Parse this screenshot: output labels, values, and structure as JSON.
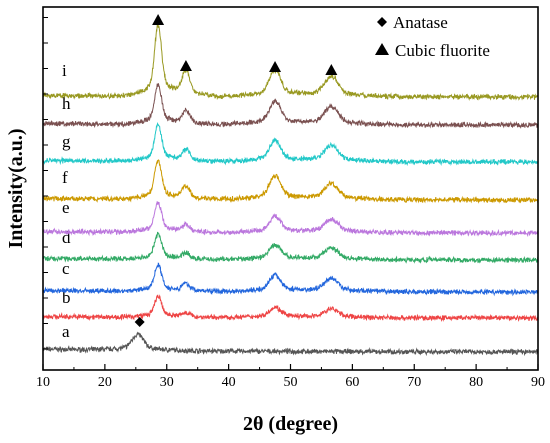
{
  "chart_data": {
    "type": "line",
    "xlabel": "2θ (degree)",
    "ylabel": "Intensity(a.u.)",
    "xlim": [
      10,
      90
    ],
    "xticks": [
      10,
      20,
      30,
      40,
      50,
      60,
      70,
      80,
      90
    ],
    "y_tick_labels_shown": false,
    "grid": false,
    "legend": {
      "placement": "top-right",
      "entries": [
        {
          "marker": "diamond",
          "label": "Anatase"
        },
        {
          "marker": "triangle",
          "label": "Cubic fluorite"
        }
      ]
    },
    "series": [
      {
        "name": "a",
        "color": "#555555",
        "peaks": [
          {
            "x": 25.3,
            "h": 0.55
          }
        ],
        "diamond_markers": [
          25.3
        ]
      },
      {
        "name": "b",
        "color": "#ee4444",
        "peaks": [
          {
            "x": 28.6,
            "h": 0.7
          },
          {
            "x": 33.1,
            "h": 0.15
          },
          {
            "x": 47.5,
            "h": 0.35
          },
          {
            "x": 56.6,
            "h": 0.3
          }
        ]
      },
      {
        "name": "c",
        "color": "#2266dd",
        "peaks": [
          {
            "x": 28.6,
            "h": 0.9
          },
          {
            "x": 33.1,
            "h": 0.25
          },
          {
            "x": 47.5,
            "h": 0.55
          },
          {
            "x": 56.6,
            "h": 0.45
          }
        ]
      },
      {
        "name": "d",
        "color": "#33aa66",
        "peaks": [
          {
            "x": 28.6,
            "h": 0.85
          },
          {
            "x": 33.1,
            "h": 0.2
          },
          {
            "x": 47.5,
            "h": 0.5
          },
          {
            "x": 56.6,
            "h": 0.4
          }
        ]
      },
      {
        "name": "e",
        "color": "#bb77dd",
        "peaks": [
          {
            "x": 28.6,
            "h": 1.0
          },
          {
            "x": 33.1,
            "h": 0.25
          },
          {
            "x": 47.5,
            "h": 0.55
          },
          {
            "x": 56.6,
            "h": 0.45
          }
        ]
      },
      {
        "name": "f",
        "color": "#cc9900",
        "peaks": [
          {
            "x": 28.6,
            "h": 1.3
          },
          {
            "x": 33.1,
            "h": 0.45
          },
          {
            "x": 47.5,
            "h": 0.8
          },
          {
            "x": 56.6,
            "h": 0.55
          }
        ]
      },
      {
        "name": "g",
        "color": "#22c8c8",
        "peaks": [
          {
            "x": 28.6,
            "h": 1.25
          },
          {
            "x": 33.1,
            "h": 0.4
          },
          {
            "x": 47.5,
            "h": 0.7
          },
          {
            "x": 56.6,
            "h": 0.55
          }
        ]
      },
      {
        "name": "h",
        "color": "#7a5050",
        "peaks": [
          {
            "x": 28.6,
            "h": 1.35
          },
          {
            "x": 33.1,
            "h": 0.45
          },
          {
            "x": 47.5,
            "h": 0.8
          },
          {
            "x": 56.6,
            "h": 0.6
          }
        ]
      },
      {
        "name": "i",
        "color": "#999922",
        "peaks": [
          {
            "x": 28.6,
            "h": 2.4
          },
          {
            "x": 33.1,
            "h": 0.85
          },
          {
            "x": 47.5,
            "h": 0.9
          },
          {
            "x": 56.6,
            "h": 0.7
          }
        ],
        "triangle_markers": [
          28.6,
          33.1,
          47.5,
          56.6
        ]
      }
    ]
  }
}
